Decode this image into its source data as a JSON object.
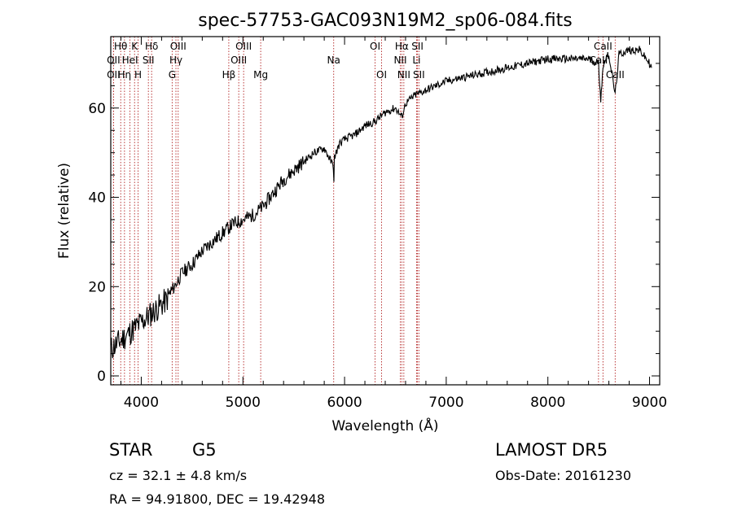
{
  "chart_data": {
    "type": "line",
    "title": "spec-57753-GAC093N19M2_sp06-084.fits",
    "xlabel": "Wavelength (Å)",
    "ylabel": "Flux (relative)",
    "xlim": [
      3700,
      9100
    ],
    "ylim": [
      -2,
      76
    ],
    "xticks": [
      4000,
      5000,
      6000,
      7000,
      8000,
      9000
    ],
    "yticks": [
      0,
      20,
      40,
      60
    ],
    "x_tick_labels": [
      "4000",
      "5000",
      "6000",
      "7000",
      "8000",
      "9000"
    ],
    "y_tick_labels": [
      "0",
      "20",
      "40",
      "60"
    ],
    "grid": false,
    "series": [
      {
        "x": [
          3700,
          3750,
          3800,
          3850,
          3900,
          3950,
          4000,
          4050,
          4100,
          4150,
          4200,
          4250,
          4300,
          4350,
          4400,
          4500,
          4600,
          4700,
          4800,
          4900,
          5000,
          5100,
          5200,
          5300,
          5400,
          5500,
          5600,
          5700,
          5800,
          5890,
          5895,
          5900,
          5950,
          6000,
          6100,
          6200,
          6300,
          6400,
          6500,
          6563,
          6600,
          6700,
          6800,
          6900,
          7000,
          7200,
          7400,
          7600,
          7800,
          8000,
          8200,
          8400,
          8498,
          8520,
          8542,
          8560,
          8600,
          8662,
          8700,
          8800,
          8900,
          9000,
          9020
        ],
        "y": [
          6,
          7,
          8,
          9,
          10,
          11,
          12,
          13,
          14,
          15,
          16,
          17,
          19,
          21,
          23,
          25,
          28,
          30,
          32,
          34,
          35,
          36,
          38,
          41,
          44,
          46,
          48,
          50,
          51,
          47,
          43,
          49,
          52,
          53,
          54,
          56,
          57,
          59,
          60,
          58,
          61,
          63,
          64,
          65,
          66,
          67,
          68,
          69,
          70,
          71,
          71,
          71,
          70,
          62,
          69,
          71,
          72,
          63,
          72,
          73,
          73,
          70,
          69
        ]
      }
    ],
    "spectral_lines": [
      {
        "label": "Hθ",
        "x": 3798,
        "row": 1
      },
      {
        "label": "OII",
        "x": 3727,
        "row": 2
      },
      {
        "label": "OII",
        "x": 3727,
        "row": 3
      },
      {
        "label": "K",
        "x": 3934,
        "row": 1
      },
      {
        "label": "HeI",
        "x": 3889,
        "row": 2
      },
      {
        "label": "Hη",
        "x": 3835,
        "row": 3
      },
      {
        "label": "Hδ",
        "x": 4102,
        "row": 1
      },
      {
        "label": "SII",
        "x": 4070,
        "row": 2
      },
      {
        "label": "H",
        "x": 3969,
        "row": 3
      },
      {
        "label": "OIII",
        "x": 4363,
        "row": 1
      },
      {
        "label": "Hγ",
        "x": 4341,
        "row": 2
      },
      {
        "label": "G",
        "x": 4304,
        "row": 3
      },
      {
        "label": "Hβ",
        "x": 4861,
        "row": 3
      },
      {
        "label": "OIII",
        "x": 5007,
        "row": 1
      },
      {
        "label": "OIII",
        "x": 4959,
        "row": 2
      },
      {
        "label": "Mg",
        "x": 5175,
        "row": 3
      },
      {
        "label": "Na",
        "x": 5893,
        "row": 2
      },
      {
        "label": "OI",
        "x": 6300,
        "row": 1
      },
      {
        "label": "OI",
        "x": 6364,
        "row": 3
      },
      {
        "label": "Hα",
        "x": 6563,
        "row": 1
      },
      {
        "label": "NII",
        "x": 6548,
        "row": 2
      },
      {
        "label": "NII",
        "x": 6583,
        "row": 3
      },
      {
        "label": "SII",
        "x": 6717,
        "row": 1
      },
      {
        "label": "Li",
        "x": 6708,
        "row": 2
      },
      {
        "label": "SII",
        "x": 6731,
        "row": 3
      },
      {
        "label": "CaII",
        "x": 8542,
        "row": 1
      },
      {
        "label": "CaII",
        "x": 8498,
        "row": 2
      },
      {
        "label": "CaII",
        "x": 8662,
        "row": 3
      }
    ]
  },
  "info": {
    "class": "STAR",
    "subclass": "G5",
    "cz": "cz = 32.1 ± 4.8 km/s",
    "coords": "RA =  94.91800, DEC =  19.42948",
    "survey": "LAMOST DR5",
    "obs_date": "Obs-Date: 20161230"
  }
}
